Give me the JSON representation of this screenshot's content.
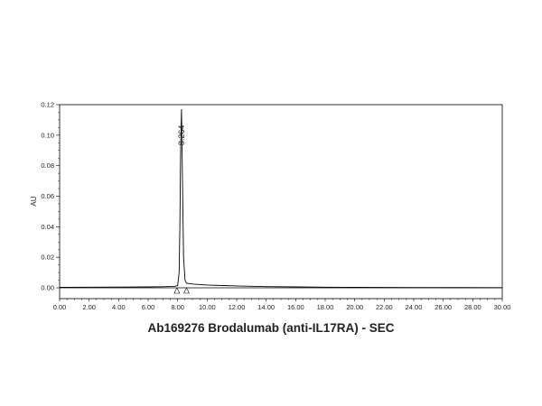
{
  "chart_data": {
    "type": "line",
    "title": "Ab169276 Brodalumab (anti-IL17RA) - SEC",
    "ylabel": "AU",
    "xlabel": "",
    "xlim": [
      0,
      30
    ],
    "ylim": [
      -0.005,
      0.12
    ],
    "x_ticks": [
      "0.00",
      "2.00",
      "4.00",
      "6.00",
      "8.00",
      "10.00",
      "12.00",
      "14.00",
      "16.00",
      "18.00",
      "20.00",
      "22.00",
      "24.00",
      "26.00",
      "28.00",
      "30.00"
    ],
    "y_ticks": [
      "0.00",
      "0.02",
      "0.04",
      "0.06",
      "0.08",
      "0.10",
      "0.12"
    ],
    "grid": false,
    "series": [
      {
        "x": [
          0.0,
          2.0,
          4.0,
          6.0,
          7.0,
          7.8,
          8.0,
          8.1,
          8.15,
          8.2,
          8.26,
          8.32,
          8.4,
          8.5,
          8.6,
          8.8,
          9.0,
          10.0,
          12.0,
          14.0,
          16.0,
          18.0,
          20.0,
          24.0,
          30.0
        ],
        "y": [
          0.0003,
          0.0004,
          0.0005,
          0.0006,
          0.0007,
          0.0009,
          0.0015,
          0.01,
          0.04,
          0.09,
          0.117,
          0.075,
          0.02,
          0.005,
          0.003,
          0.0028,
          0.0025,
          0.0018,
          0.0012,
          0.0008,
          0.0006,
          0.0004,
          0.0003,
          0.0002,
          0.0001
        ],
        "color": "#000000"
      }
    ],
    "annotations": [
      {
        "text": "8.264",
        "x": 8.264,
        "y": 0.117
      }
    ],
    "integration_markers": [
      {
        "x": 7.95,
        "y": 0.0
      },
      {
        "x": 8.6,
        "y": 0.0
      }
    ]
  }
}
